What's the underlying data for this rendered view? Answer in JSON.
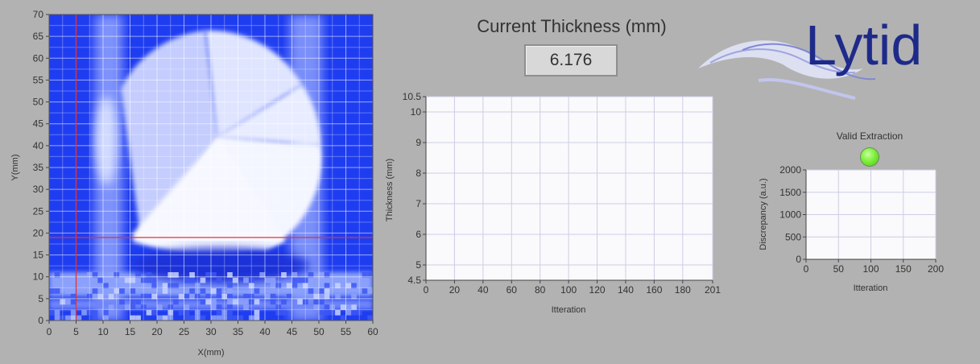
{
  "colors": {
    "background": "#b2b2b2",
    "heatmap_low": "#1f3df0",
    "heatmap_high": "#f2f4ff",
    "cursor": "#e83232",
    "plot_bg": "#fafafc",
    "grid": "#cccde6",
    "led_on": "#7df03a",
    "logo_text": "#1e2a8a"
  },
  "logo": {
    "text": "Lytid"
  },
  "thickness": {
    "title": "Current Thickness (mm)",
    "value": "6.176"
  },
  "status": {
    "label": "Valid Extraction",
    "led_state": "on"
  },
  "chart_data": [
    {
      "type": "heatmap",
      "title": "",
      "xlabel": "X(mm)",
      "ylabel": "Y(mm)",
      "xlim": [
        0,
        60
      ],
      "ylim": [
        0,
        70
      ],
      "xticks": [
        "0",
        "5",
        "10",
        "15",
        "20",
        "25",
        "30",
        "35",
        "40",
        "45",
        "50",
        "55",
        "60"
      ],
      "yticks": [
        "0",
        "5",
        "10",
        "15",
        "20",
        "25",
        "30",
        "35",
        "40",
        "45",
        "50",
        "55",
        "60",
        "65",
        "70"
      ],
      "grid": true,
      "cursor": {
        "x": 5,
        "y": 19
      }
    },
    {
      "type": "line",
      "title": "",
      "xlabel": "Itteration",
      "ylabel": "Thickness (mm)",
      "xlim": [
        0,
        201
      ],
      "ylim": [
        4.5,
        10.5
      ],
      "xticks": [
        "0",
        "20",
        "40",
        "60",
        "80",
        "100",
        "120",
        "140",
        "160",
        "180",
        "201"
      ],
      "yticks": [
        "4.5",
        "5",
        "6",
        "7",
        "8",
        "9",
        "10",
        "10.5"
      ],
      "grid": true,
      "series": []
    },
    {
      "type": "line",
      "title": "",
      "xlabel": "Itteration",
      "ylabel": "Discrepancy (a.u.)",
      "xlim": [
        0,
        200
      ],
      "ylim": [
        0,
        2000
      ],
      "xticks": [
        "0",
        "50",
        "100",
        "150",
        "200"
      ],
      "yticks": [
        "0",
        "500",
        "1000",
        "1500",
        "2000"
      ],
      "grid": true,
      "series": []
    }
  ]
}
